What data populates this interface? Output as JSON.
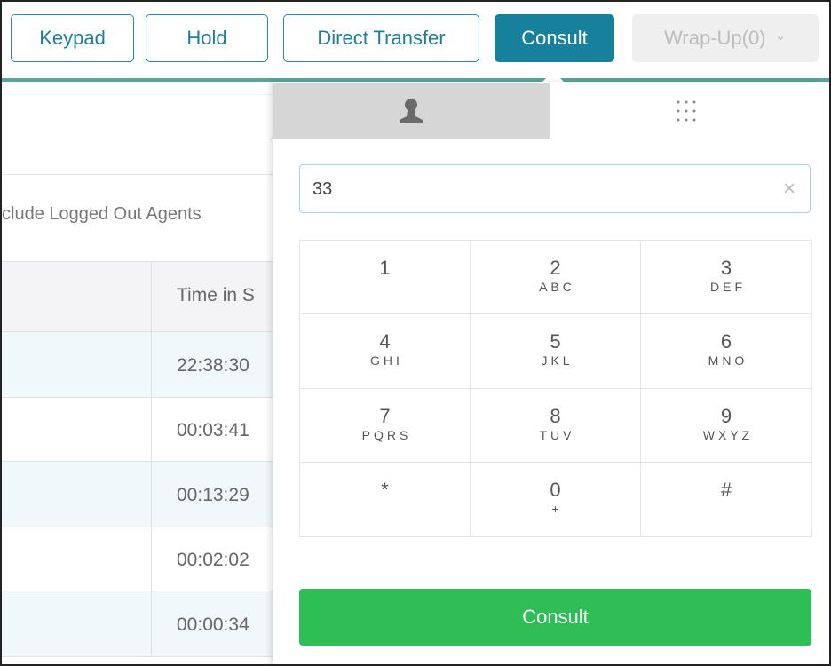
{
  "toolbar": {
    "keypad": "Keypad",
    "hold": "Hold",
    "direct_transfer": "Direct Transfer",
    "consult": "Consult",
    "wrapup": "Wrap-Up(0)",
    "wrapup_chevron": "⌄"
  },
  "left": {
    "include_label": "clude Logged Out Agents",
    "column_header": "Time in S",
    "rows": [
      "22:38:30",
      "00:03:41",
      "00:13:29",
      "00:02:02",
      "00:00:34"
    ]
  },
  "popover": {
    "tabs": [
      {
        "icon": "person-icon",
        "active": true
      },
      {
        "icon": "keypad-grid-icon",
        "active": false
      }
    ],
    "input_value": "33",
    "clear": "×",
    "keys": [
      {
        "d": "1",
        "l": ""
      },
      {
        "d": "2",
        "l": "ABC"
      },
      {
        "d": "3",
        "l": "DEF"
      },
      {
        "d": "4",
        "l": "GHI"
      },
      {
        "d": "5",
        "l": "JKL"
      },
      {
        "d": "6",
        "l": "MNO"
      },
      {
        "d": "7",
        "l": "PQRS"
      },
      {
        "d": "8",
        "l": "TUV"
      },
      {
        "d": "9",
        "l": "WXYZ"
      },
      {
        "d": "*",
        "l": ""
      },
      {
        "d": "0",
        "l": "+"
      },
      {
        "d": "#",
        "l": ""
      }
    ],
    "consult_button": "Consult"
  },
  "colors": {
    "accent": "#17809c",
    "success": "#2fbd55"
  }
}
